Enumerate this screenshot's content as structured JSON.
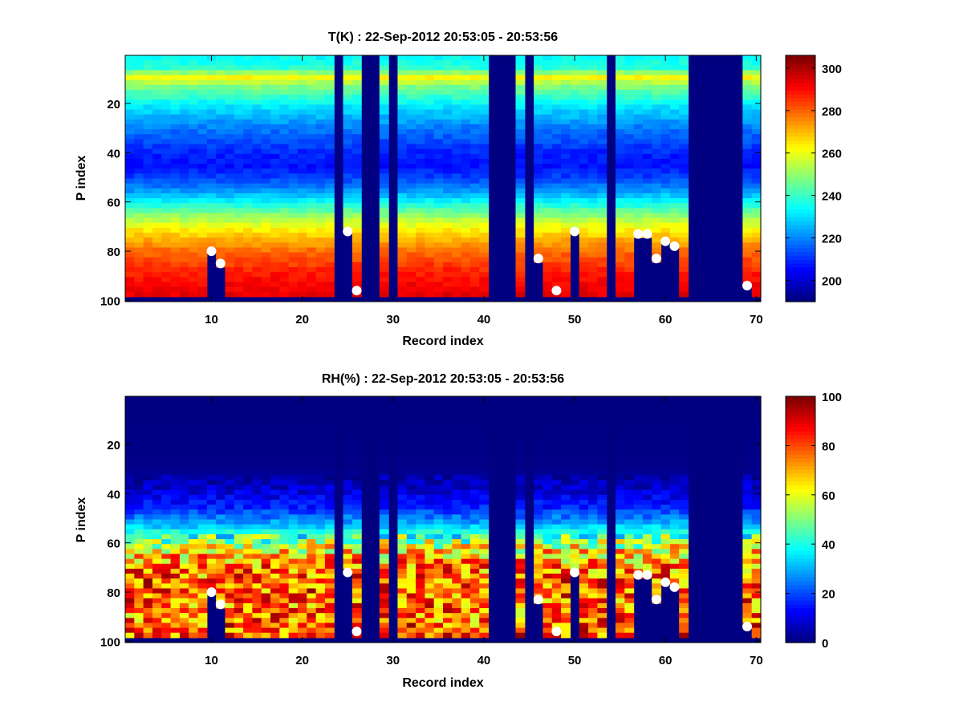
{
  "chart_data": [
    {
      "type": "heatmap",
      "title": "T(K) : 22-Sep-2012 20:53:05 - 20:53:56",
      "xlabel": "Record index",
      "ylabel": "P index",
      "xlim": [
        0.5,
        70.5
      ],
      "ylim": [
        0.5,
        100.5
      ],
      "y_reversed": true,
      "xticks": [
        10,
        20,
        30,
        40,
        50,
        60,
        70
      ],
      "yticks": [
        20,
        40,
        60,
        80,
        100
      ],
      "colormap": "jet",
      "clim": [
        190,
        306
      ],
      "colorbar_ticks": [
        200,
        220,
        240,
        260,
        280,
        300
      ],
      "invalid_columns": [
        24,
        27,
        28,
        30,
        41,
        42,
        43,
        45,
        54,
        63,
        64,
        65,
        66,
        67,
        68
      ],
      "markers": [
        {
          "x": 10,
          "y": 80
        },
        {
          "x": 11,
          "y": 85
        },
        {
          "x": 25,
          "y": 72
        },
        {
          "x": 26,
          "y": 96
        },
        {
          "x": 46,
          "y": 83
        },
        {
          "x": 48,
          "y": 96
        },
        {
          "x": 50,
          "y": 72
        },
        {
          "x": 57,
          "y": 73
        },
        {
          "x": 58,
          "y": 73
        },
        {
          "x": 59,
          "y": 83
        },
        {
          "x": 60,
          "y": 76
        },
        {
          "x": 61,
          "y": 78
        },
        {
          "x": 69,
          "y": 94
        }
      ],
      "profile_points": [
        {
          "p": 1,
          "value": 234
        },
        {
          "p": 5,
          "value": 238
        },
        {
          "p": 9,
          "value": 262
        },
        {
          "p": 12,
          "value": 250
        },
        {
          "p": 20,
          "value": 232
        },
        {
          "p": 30,
          "value": 218
        },
        {
          "p": 40,
          "value": 208
        },
        {
          "p": 45,
          "value": 206
        },
        {
          "p": 50,
          "value": 212
        },
        {
          "p": 55,
          "value": 222
        },
        {
          "p": 60,
          "value": 235
        },
        {
          "p": 65,
          "value": 250
        },
        {
          "p": 70,
          "value": 262
        },
        {
          "p": 75,
          "value": 272
        },
        {
          "p": 80,
          "value": 280
        },
        {
          "p": 85,
          "value": 285
        },
        {
          "p": 90,
          "value": 290
        },
        {
          "p": 100,
          "value": 296
        }
      ]
    },
    {
      "type": "heatmap",
      "title": "RH(%) : 22-Sep-2012 20:53:05 - 20:53:56",
      "xlabel": "Record index",
      "ylabel": "P index",
      "xlim": [
        0.5,
        70.5
      ],
      "ylim": [
        0.5,
        100.5
      ],
      "y_reversed": true,
      "xticks": [
        10,
        20,
        30,
        40,
        50,
        60,
        70
      ],
      "yticks": [
        20,
        40,
        60,
        80,
        100
      ],
      "colormap": "jet",
      "clim": [
        0,
        100
      ],
      "colorbar_ticks": [
        0,
        20,
        40,
        60,
        80,
        100
      ],
      "invalid_columns": [
        24,
        27,
        28,
        30,
        41,
        42,
        43,
        45,
        54,
        63,
        64,
        65,
        66,
        67,
        68
      ],
      "markers": [
        {
          "x": 10,
          "y": 80
        },
        {
          "x": 11,
          "y": 85
        },
        {
          "x": 25,
          "y": 72
        },
        {
          "x": 26,
          "y": 96
        },
        {
          "x": 46,
          "y": 83
        },
        {
          "x": 48,
          "y": 96
        },
        {
          "x": 50,
          "y": 72
        },
        {
          "x": 57,
          "y": 73
        },
        {
          "x": 58,
          "y": 73
        },
        {
          "x": 59,
          "y": 83
        },
        {
          "x": 60,
          "y": 76
        },
        {
          "x": 61,
          "y": 78
        },
        {
          "x": 69,
          "y": 94
        }
      ],
      "profile_points": [
        {
          "p": 1,
          "value": 0
        },
        {
          "p": 30,
          "value": 1
        },
        {
          "p": 38,
          "value": 8
        },
        {
          "p": 45,
          "value": 15
        },
        {
          "p": 52,
          "value": 30
        },
        {
          "p": 58,
          "value": 50
        },
        {
          "p": 64,
          "value": 68
        },
        {
          "p": 70,
          "value": 75
        },
        {
          "p": 76,
          "value": 80
        },
        {
          "p": 82,
          "value": 78
        },
        {
          "p": 88,
          "value": 76
        },
        {
          "p": 95,
          "value": 80
        },
        {
          "p": 100,
          "value": 82
        }
      ]
    }
  ]
}
